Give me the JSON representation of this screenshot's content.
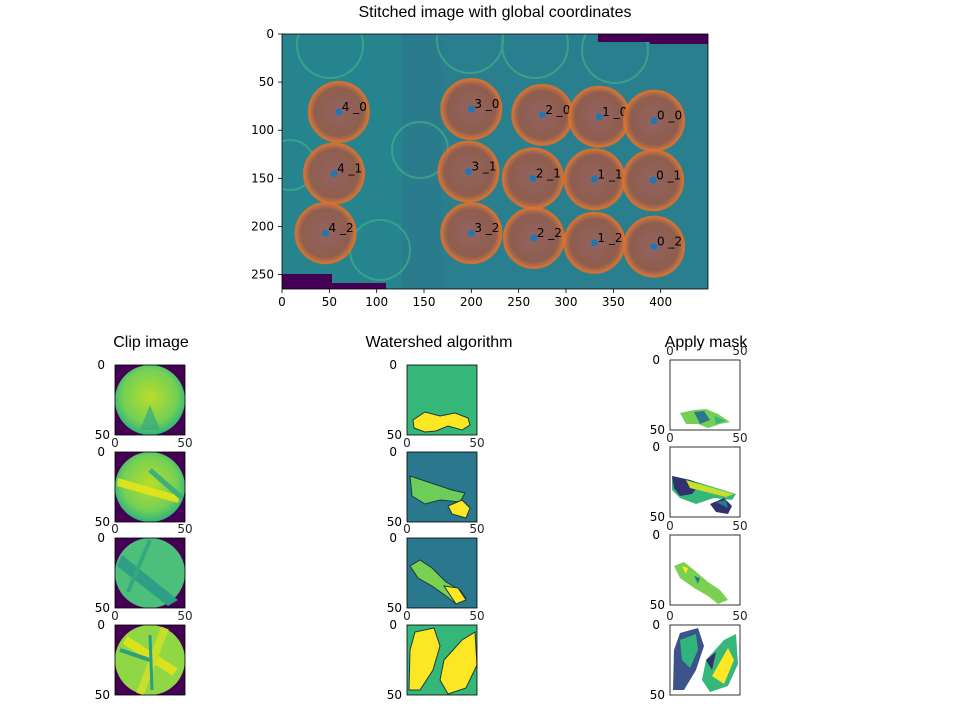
{
  "chart_data": [
    {
      "type": "image",
      "title": "Stitched image with global coordinates",
      "xlim": [
        0,
        450
      ],
      "ylim": [
        265,
        0
      ],
      "xticks": [
        0,
        50,
        100,
        150,
        200,
        250,
        300,
        350,
        400
      ],
      "yticks": [
        0,
        50,
        100,
        150,
        200,
        250
      ],
      "xtick_labels": [
        "0",
        "50",
        "100",
        "150",
        "200",
        "250",
        "300",
        "350",
        "400"
      ],
      "ytick_labels": [
        "0",
        "50",
        "100",
        "150",
        "200",
        "250"
      ],
      "grid": false,
      "points": [
        {
          "label": "4 _0",
          "x": 60,
          "y": 81
        },
        {
          "label": "3 _0",
          "x": 200,
          "y": 78
        },
        {
          "label": "2 _0",
          "x": 275,
          "y": 84
        },
        {
          "label": "1 _0",
          "x": 335,
          "y": 86
        },
        {
          "label": "0 _0",
          "x": 393,
          "y": 90
        },
        {
          "label": "4 _1",
          "x": 55,
          "y": 145
        },
        {
          "label": "3 _1",
          "x": 197,
          "y": 143
        },
        {
          "label": "2 _1",
          "x": 265,
          "y": 150
        },
        {
          "label": "1 _1",
          "x": 330,
          "y": 151
        },
        {
          "label": "0 _1",
          "x": 392,
          "y": 152
        },
        {
          "label": "4 _2",
          "x": 46,
          "y": 207
        },
        {
          "label": "3 _2",
          "x": 200,
          "y": 207
        },
        {
          "label": "2 _2",
          "x": 266,
          "y": 212
        },
        {
          "label": "1 _2",
          "x": 330,
          "y": 217
        },
        {
          "label": "0 _2",
          "x": 393,
          "y": 221
        }
      ],
      "colors": {
        "background": "#2a7f8e",
        "circle": "#b26040",
        "point": "#1f77b4"
      }
    },
    {
      "type": "image_grid",
      "columns": [
        "Clip image",
        "Watershed algorithm",
        "Apply mask"
      ],
      "rows": 4,
      "panel_xticks": [
        "0",
        "50"
      ],
      "panel_yticks": [
        "0",
        "50"
      ]
    }
  ]
}
